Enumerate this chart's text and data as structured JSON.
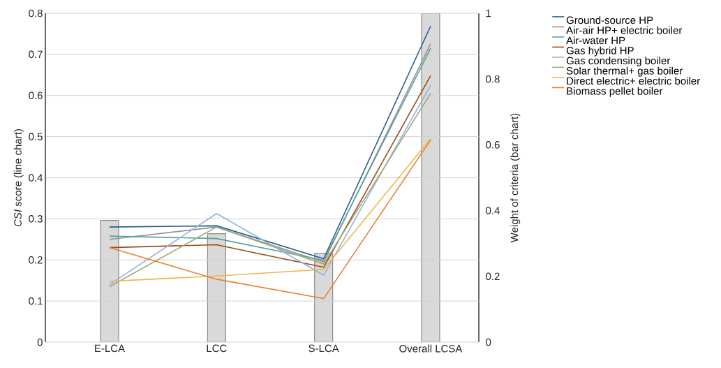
{
  "chart_data": {
    "type": "line",
    "categories": [
      "E-LCA",
      "LCC",
      "S-LCA",
      "Overall LCSA"
    ],
    "ylabel": "*CSI* score (line chart)",
    "y2label": "Weight of criteria (bar chart)",
    "series": [
      {
        "type": "bar",
        "axis": "y2",
        "color": "#d9d9d9",
        "values": [
          0.37,
          0.33,
          0.27,
          1.0
        ]
      },
      {
        "name": "Ground-source HP",
        "color": "#255e91",
        "values": [
          0.28,
          0.283,
          0.203,
          0.769
        ]
      },
      {
        "name": "Air-air HP+ electric boiler",
        "color": "#9e8e98",
        "values": [
          0.25,
          0.28,
          0.195,
          0.726
        ]
      },
      {
        "name": "Air-water HP",
        "color": "#5ba19a",
        "values": [
          0.258,
          0.252,
          0.199,
          0.715
        ]
      },
      {
        "name": "Gas hybrid HP",
        "color": "#9c4a14",
        "values": [
          0.23,
          0.237,
          0.182,
          0.648
        ]
      },
      {
        "name": "Gas condensing boiler",
        "color": "#8fb4dc",
        "values": [
          0.14,
          0.313,
          0.163,
          0.625
        ]
      },
      {
        "name": "Solar thermal+ gas boiler",
        "color": "#9fa87a",
        "values": [
          0.135,
          0.28,
          0.19,
          0.605
        ]
      },
      {
        "name": "Direct electric+ electric boiler",
        "color": "#f2b548",
        "values": [
          0.148,
          0.161,
          0.177,
          0.495
        ]
      },
      {
        "name": "Biomass pellet boiler",
        "color": "#ed7d31",
        "values": [
          0.23,
          0.153,
          0.106,
          0.492
        ]
      }
    ],
    "ylim": [
      0,
      0.8
    ],
    "yticks": [
      0,
      0.1,
      0.2,
      0.3,
      0.4,
      0.5,
      0.6,
      0.7,
      0.8
    ],
    "y2lim": [
      0,
      1
    ],
    "y2ticks": [
      0,
      0.2,
      0.4,
      0.6,
      0.8,
      1
    ],
    "grid": "y",
    "legend": "right"
  }
}
